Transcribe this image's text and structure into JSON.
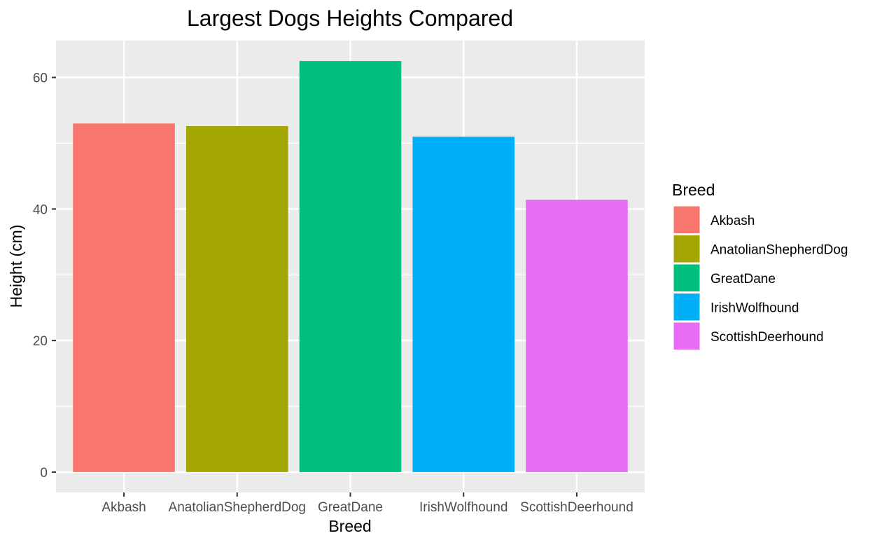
{
  "chart_data": {
    "type": "bar",
    "title": "Largest Dogs Heights Compared",
    "xlabel": "Breed",
    "ylabel": "Height (cm)",
    "categories": [
      "Akbash",
      "AnatolianShepherdDog",
      "GreatDane",
      "IrishWolfhound",
      "ScottishDeerhound"
    ],
    "values": [
      53,
      52.6,
      62.5,
      51,
      41.4
    ],
    "colors": [
      "#F8766D",
      "#A3A500",
      "#00BF7D",
      "#00B0F6",
      "#E76BF3"
    ],
    "ylim": [
      -3.1,
      65.6
    ],
    "yticks": [
      0,
      20,
      40,
      60
    ],
    "ytick_labels": [
      "0",
      "20",
      "40",
      "60"
    ],
    "grid": true,
    "panel_background": "#EBEBEB",
    "legend": {
      "title": "Breed",
      "placement": "right",
      "items": [
        "Akbash",
        "AnatolianShepherdDog",
        "GreatDane",
        "IrishWolfhound",
        "ScottishDeerhound"
      ]
    }
  }
}
